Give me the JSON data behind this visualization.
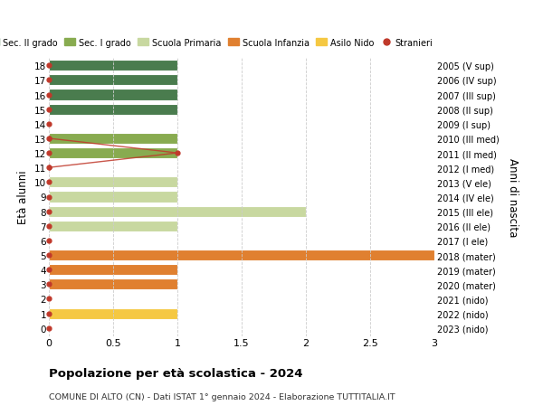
{
  "ages": [
    0,
    1,
    2,
    3,
    4,
    5,
    6,
    7,
    8,
    9,
    10,
    11,
    12,
    13,
    14,
    15,
    16,
    17,
    18
  ],
  "right_labels": [
    "2023 (nido)",
    "2022 (nido)",
    "2021 (nido)",
    "2020 (mater)",
    "2019 (mater)",
    "2018 (mater)",
    "2017 (I ele)",
    "2016 (II ele)",
    "2015 (III ele)",
    "2014 (IV ele)",
    "2013 (V ele)",
    "2012 (I med)",
    "2011 (II med)",
    "2010 (III med)",
    "2009 (I sup)",
    "2008 (II sup)",
    "2007 (III sup)",
    "2006 (IV sup)",
    "2005 (V sup)"
  ],
  "bar_values": [
    0,
    1,
    0,
    1,
    1,
    3,
    0,
    1,
    2,
    1,
    1,
    0,
    1,
    1,
    0,
    1,
    1,
    1,
    1
  ],
  "bar_colors": [
    "#f5c842",
    "#f5c842",
    "#f5c842",
    "#e08030",
    "#e08030",
    "#e08030",
    "#c8d8a0",
    "#c8d8a0",
    "#c8d8a0",
    "#c8d8a0",
    "#c8d8a0",
    "#88ab50",
    "#88ab50",
    "#88ab50",
    "#4a7c4e",
    "#4a7c4e",
    "#4a7c4e",
    "#4a7c4e",
    "#4a7c4e"
  ],
  "stranieri_line_ages": [
    11,
    12,
    13
  ],
  "stranieri_line_values": [
    0,
    1,
    0
  ],
  "legend_items": [
    {
      "label": "Sec. II grado",
      "color": "#4a7c4e"
    },
    {
      "label": "Sec. I grado",
      "color": "#88ab50"
    },
    {
      "label": "Scuola Primaria",
      "color": "#c8d8a0"
    },
    {
      "label": "Scuola Infanzia",
      "color": "#e08030"
    },
    {
      "label": "Asilo Nido",
      "color": "#f5c842"
    },
    {
      "label": "Stranieri",
      "color": "#c0392b"
    }
  ],
  "ylabel_left": "Età alunni",
  "ylabel_right": "Anni di nascita",
  "title": "Popolazione per età scolastica - 2024",
  "subtitle": "COMUNE DI ALTO (CN) - Dati ISTAT 1° gennaio 2024 - Elaborazione TUTTITALIA.IT",
  "xlim": [
    0,
    3.0
  ],
  "xticks": [
    0,
    0.5,
    1.0,
    1.5,
    2.0,
    2.5,
    3.0
  ],
  "bg_color": "#ffffff",
  "plot_bg": "#ffffff",
  "grid_color": "#cccccc",
  "stranieri_color": "#c0392b",
  "bar_height": 0.75
}
